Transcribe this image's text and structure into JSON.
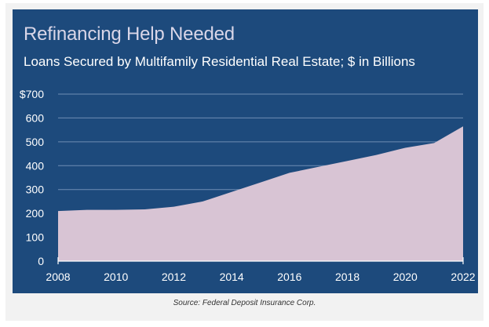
{
  "chart_data": {
    "type": "area",
    "title": "Refinancing Help Needed",
    "subtitle": "Loans Secured by Multifamily Residential Real Estate; $ in Billions",
    "xlabel": "",
    "ylabel": "",
    "x": [
      2008,
      2009,
      2010,
      2011,
      2012,
      2013,
      2014,
      2015,
      2016,
      2017,
      2018,
      2019,
      2020,
      2021,
      2022
    ],
    "series": [
      {
        "name": "",
        "values": [
          210,
          215,
          215,
          217,
          228,
          250,
          290,
          330,
          370,
          395,
          420,
          445,
          475,
          495,
          565
        ]
      }
    ],
    "xlim": [
      2008,
      2022
    ],
    "ylim": [
      0,
      700
    ],
    "xticks": [
      2008,
      2010,
      2012,
      2014,
      2016,
      2018,
      2020,
      2022
    ],
    "xtick_labels": [
      "2008",
      "2010",
      "2012",
      "2014",
      "2016",
      "2018",
      "2020",
      "2022"
    ],
    "yticks": [
      0,
      100,
      200,
      300,
      400,
      500,
      600,
      700
    ],
    "ytick_labels": [
      "0",
      "100",
      "200",
      "300",
      "400",
      "500",
      "600",
      "$700"
    ],
    "grid": true,
    "legend": "none",
    "source": "Source: Federal Deposit Insurance Corp.",
    "colors": {
      "background": "#1d4a7c",
      "area_fill": "#d8c4d4",
      "gridline": "#6f8db3",
      "axis_text": "#ffffff",
      "title": "#d9d6e8"
    }
  }
}
